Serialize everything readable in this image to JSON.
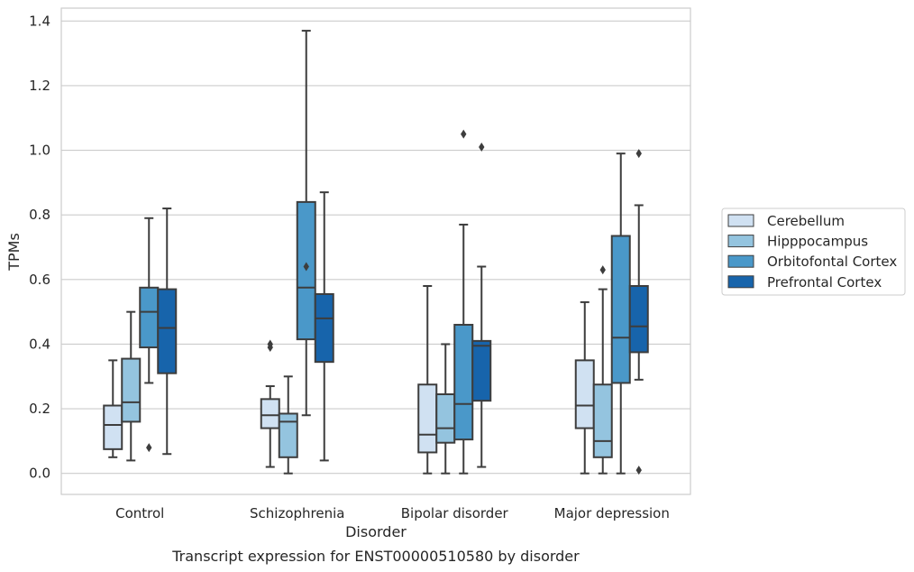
{
  "chart_data": {
    "type": "box",
    "xlabel": "Disorder",
    "ylabel": "TPMs",
    "caption": "Transcript expression for ENST00000510580 by disorder",
    "ylim": [
      -0.065,
      1.44
    ],
    "yticks": [
      "0.0",
      "0.2",
      "0.4",
      "0.6",
      "0.8",
      "1.0",
      "1.2",
      "1.4"
    ],
    "ytick_values": [
      0.0,
      0.2,
      0.4,
      0.6,
      0.8,
      1.0,
      1.2,
      1.4
    ],
    "grid": "horizontal",
    "legend_position": "right",
    "categories": [
      "Control",
      "Schizophrenia",
      "Bipolar disorder",
      "Major depression"
    ],
    "series": [
      {
        "name": "Cerebellum",
        "color": "#d0e1f2",
        "boxes": [
          {
            "whisker_low": 0.05,
            "q1": 0.075,
            "median": 0.15,
            "q3": 0.21,
            "whisker_high": 0.35,
            "outliers": []
          },
          {
            "whisker_low": 0.02,
            "q1": 0.14,
            "median": 0.18,
            "q3": 0.23,
            "whisker_high": 0.27,
            "outliers": [
              0.39,
              0.4
            ]
          },
          {
            "whisker_low": 0.0,
            "q1": 0.065,
            "median": 0.12,
            "q3": 0.275,
            "whisker_high": 0.58,
            "outliers": []
          },
          {
            "whisker_low": 0.0,
            "q1": 0.14,
            "median": 0.21,
            "q3": 0.35,
            "whisker_high": 0.53,
            "outliers": []
          }
        ]
      },
      {
        "name": "Hipppocampus",
        "color": "#94c4df",
        "boxes": [
          {
            "whisker_low": 0.04,
            "q1": 0.16,
            "median": 0.22,
            "q3": 0.355,
            "whisker_high": 0.5,
            "outliers": []
          },
          {
            "whisker_low": 0.0,
            "q1": 0.05,
            "median": 0.16,
            "q3": 0.185,
            "whisker_high": 0.3,
            "outliers": []
          },
          {
            "whisker_low": 0.0,
            "q1": 0.095,
            "median": 0.14,
            "q3": 0.245,
            "whisker_high": 0.4,
            "outliers": []
          },
          {
            "whisker_low": 0.0,
            "q1": 0.05,
            "median": 0.1,
            "q3": 0.275,
            "whisker_high": 0.57,
            "outliers": [
              0.63
            ]
          }
        ]
      },
      {
        "name": "Orbitofontal Cortex",
        "color": "#4a98c9",
        "boxes": [
          {
            "whisker_low": 0.28,
            "q1": 0.39,
            "median": 0.5,
            "q3": 0.575,
            "whisker_high": 0.79,
            "outliers": [
              0.08
            ]
          },
          {
            "whisker_low": 0.18,
            "q1": 0.415,
            "median": 0.575,
            "q3": 0.84,
            "whisker_high": 1.37,
            "outliers": [
              0.64
            ]
          },
          {
            "whisker_low": 0.0,
            "q1": 0.105,
            "median": 0.215,
            "q3": 0.46,
            "whisker_high": 0.77,
            "outliers": [
              1.05
            ]
          },
          {
            "whisker_low": 0.0,
            "q1": 0.28,
            "median": 0.42,
            "q3": 0.735,
            "whisker_high": 0.99,
            "outliers": []
          }
        ]
      },
      {
        "name": "Prefrontal Cortex",
        "color": "#1764ab",
        "boxes": [
          {
            "whisker_low": 0.06,
            "q1": 0.31,
            "median": 0.45,
            "q3": 0.57,
            "whisker_high": 0.82,
            "outliers": []
          },
          {
            "whisker_low": 0.04,
            "q1": 0.345,
            "median": 0.48,
            "q3": 0.555,
            "whisker_high": 0.87,
            "outliers": []
          },
          {
            "whisker_low": 0.02,
            "q1": 0.225,
            "median": 0.395,
            "q3": 0.41,
            "whisker_high": 0.64,
            "outliers": [
              1.01
            ]
          },
          {
            "whisker_low": 0.29,
            "q1": 0.375,
            "median": 0.455,
            "q3": 0.58,
            "whisker_high": 0.83,
            "outliers": [
              0.01,
              0.99
            ]
          }
        ]
      }
    ]
  }
}
